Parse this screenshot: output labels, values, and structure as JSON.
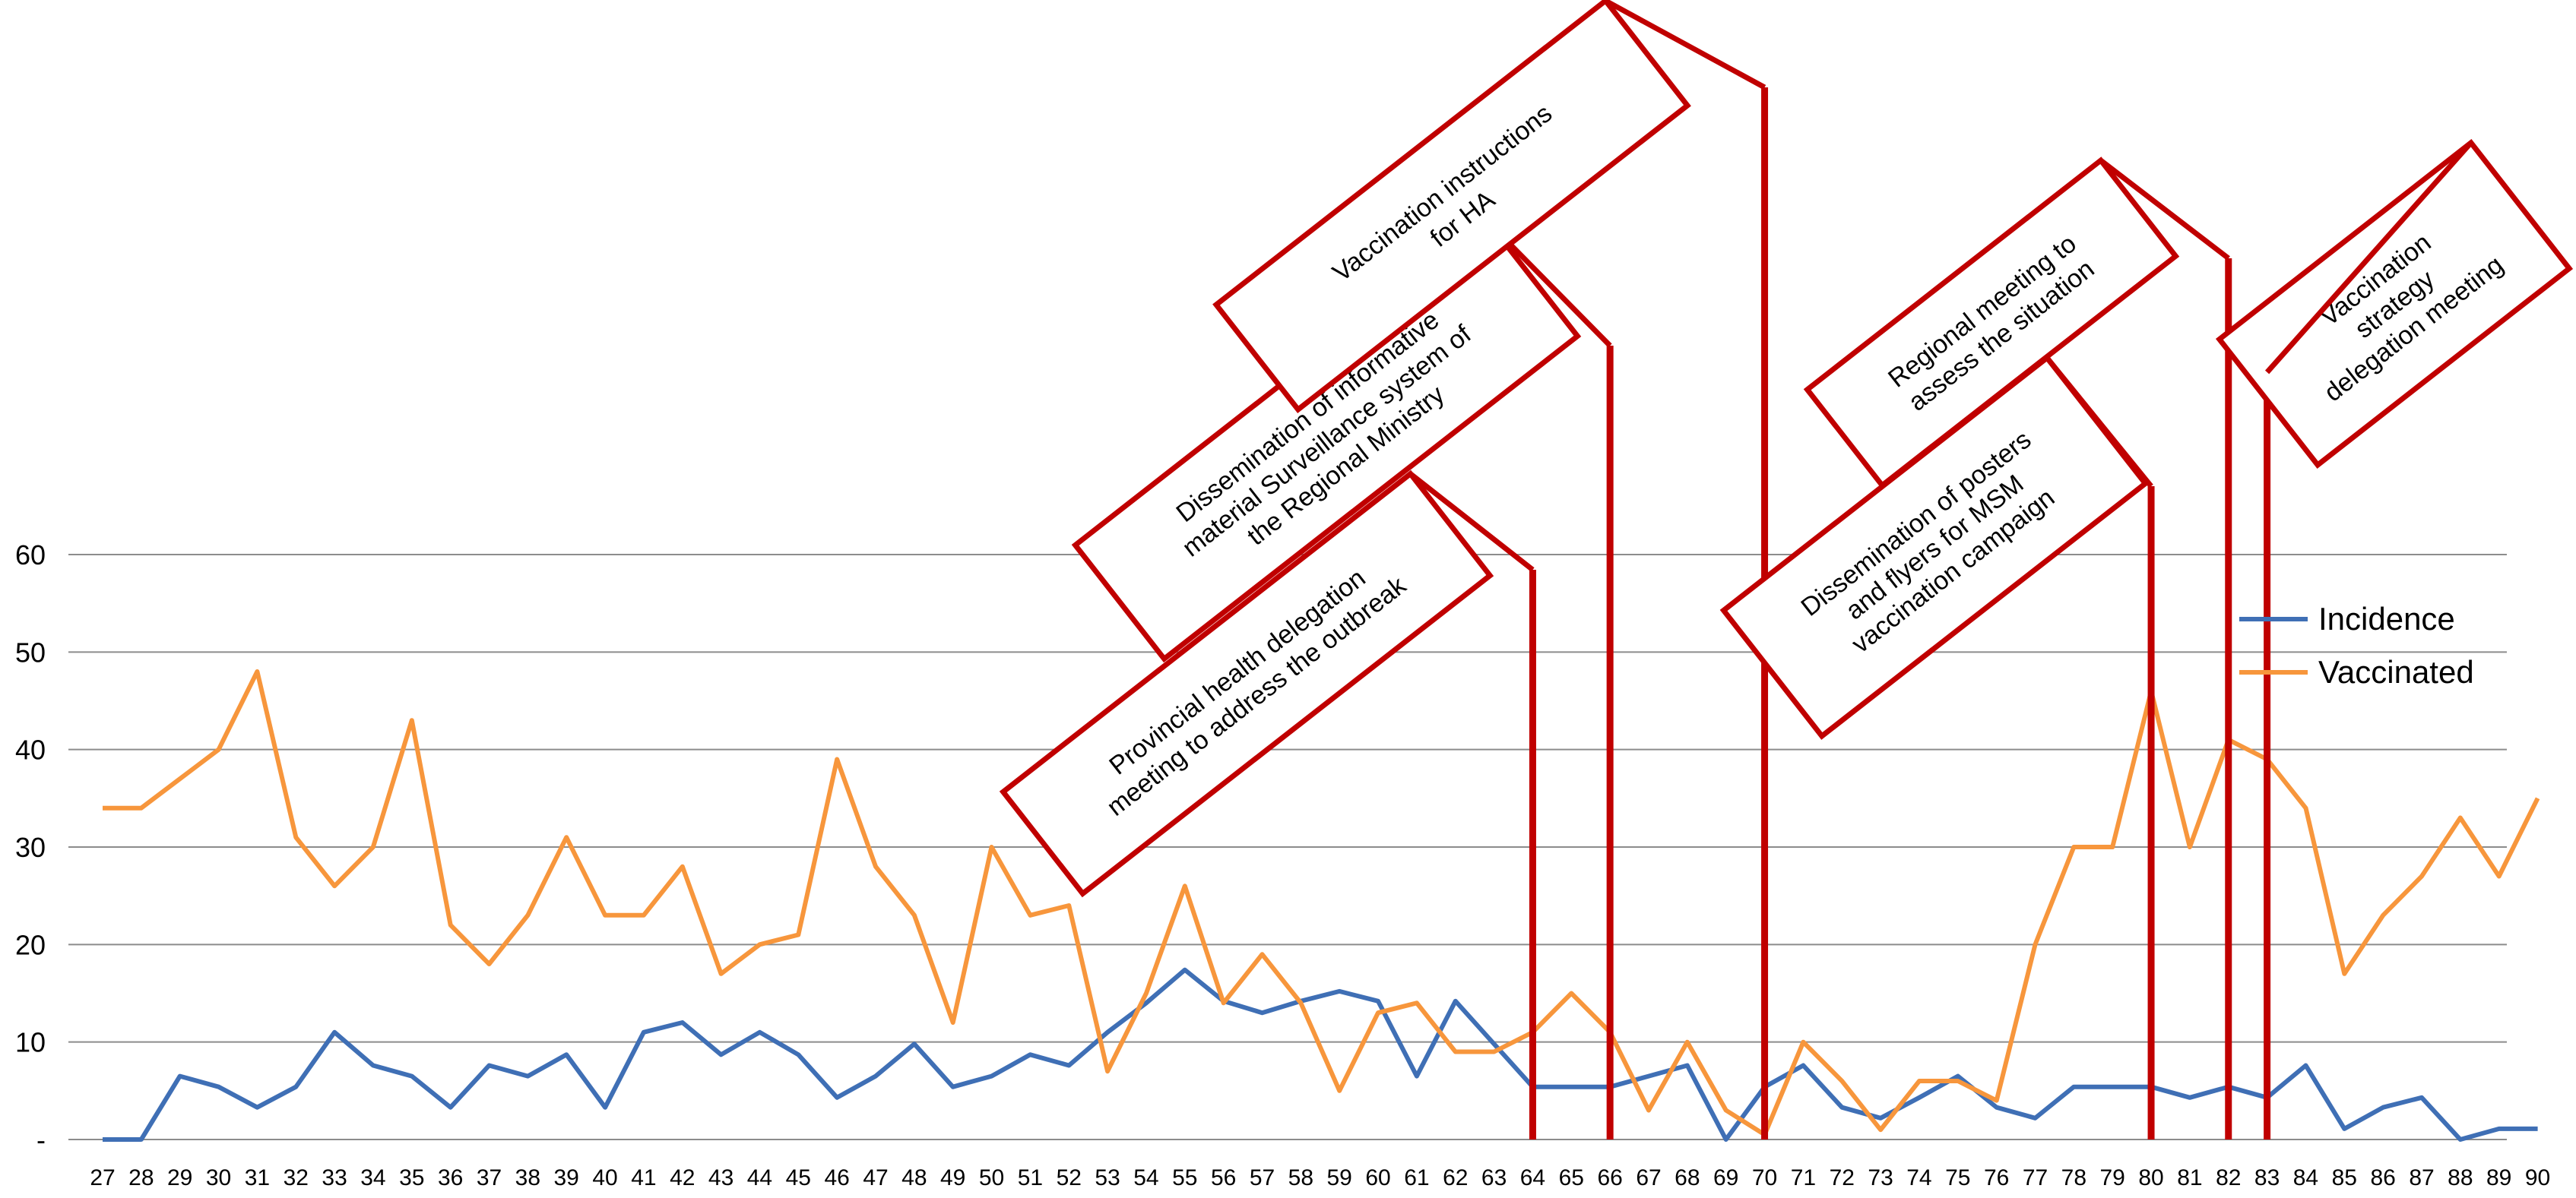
{
  "chart_data": {
    "type": "line",
    "categories": [
      "27",
      "28",
      "29",
      "30",
      "31",
      "32",
      "33",
      "34",
      "35",
      "36",
      "37",
      "38",
      "39",
      "40",
      "41",
      "42",
      "43",
      "44",
      "45",
      "46",
      "47",
      "48",
      "49",
      "50",
      "51",
      "52",
      "53",
      "54",
      "55",
      "56",
      "57",
      "58",
      "59",
      "60",
      "61",
      "62",
      "63",
      "64",
      "65",
      "66",
      "67",
      "68",
      "69",
      "70",
      "71",
      "72",
      "73",
      "74",
      "75",
      "76",
      "77",
      "78",
      "79",
      "80",
      "81",
      "82",
      "83",
      "84",
      "85",
      "86",
      "87",
      "88",
      "89",
      "90"
    ],
    "series": [
      {
        "name": "Incidence",
        "color": "#3f6fb5",
        "values": [
          0,
          0,
          6.5,
          5.4,
          3.3,
          5.4,
          11,
          7.6,
          6.5,
          3.3,
          7.6,
          6.5,
          8.7,
          3.3,
          11,
          12,
          8.7,
          11,
          8.7,
          4.3,
          6.5,
          9.8,
          5.4,
          6.5,
          8.7,
          7.6,
          11,
          14,
          17.4,
          14.2,
          13,
          14.2,
          15.2,
          14.2,
          6.5,
          14.2,
          9.8,
          5.4,
          5.4,
          5.4,
          6.5,
          7.6,
          0,
          5.4,
          7.6,
          3.3,
          2.2,
          4.3,
          6.5,
          3.3,
          2.2,
          5.4,
          5.4,
          5.4,
          4.3,
          5.4,
          4.3,
          7.6,
          1.1,
          3.3,
          4.3,
          0,
          1.1,
          1.1
        ]
      },
      {
        "name": "Vaccinated",
        "color": "#f7963c",
        "values": [
          34,
          34,
          37,
          40,
          48,
          31,
          26,
          30,
          43,
          22,
          18,
          23,
          31,
          23,
          23,
          28,
          17,
          20,
          21,
          39,
          28,
          23,
          12,
          30,
          23,
          24,
          7,
          15,
          26,
          14,
          19,
          14,
          5,
          13,
          14,
          9,
          9,
          11,
          15,
          11,
          3,
          10,
          3,
          0.5,
          10,
          6,
          1,
          6,
          6,
          4,
          20,
          30,
          30,
          46,
          30,
          41,
          39,
          34,
          17,
          23,
          27,
          33,
          27,
          35
        ]
      }
    ],
    "y_ticks": [
      "60",
      "50",
      "40",
      "30",
      "20",
      "10",
      "-"
    ],
    "ylim": [
      0,
      60
    ],
    "grid": true,
    "legend_position": "right",
    "annotations": [
      {
        "week": "64",
        "line1": "Provincial health delegation",
        "line2": "meeting to address the outbreak",
        "line3": ""
      },
      {
        "week": "66",
        "line1": "Dissemination of informative",
        "line2": "material Surveillance system of",
        "line3": "the Regional Ministry"
      },
      {
        "week": "70",
        "line1": "Vaccination instructions",
        "line2": "for HA",
        "line3": ""
      },
      {
        "week": "80",
        "line1": "Dissemination of posters",
        "line2": "and flyers for MSM",
        "line3": "vaccination campaign"
      },
      {
        "week": "82",
        "line1": "Regional meeting to",
        "line2": "assess the situation",
        "line3": ""
      },
      {
        "week": "83",
        "line1": "Vaccination",
        "line2": "strategy",
        "line3": "delegation meeting"
      }
    ],
    "marker_color": "#c00000",
    "grid_color": "#8c8c8c"
  }
}
